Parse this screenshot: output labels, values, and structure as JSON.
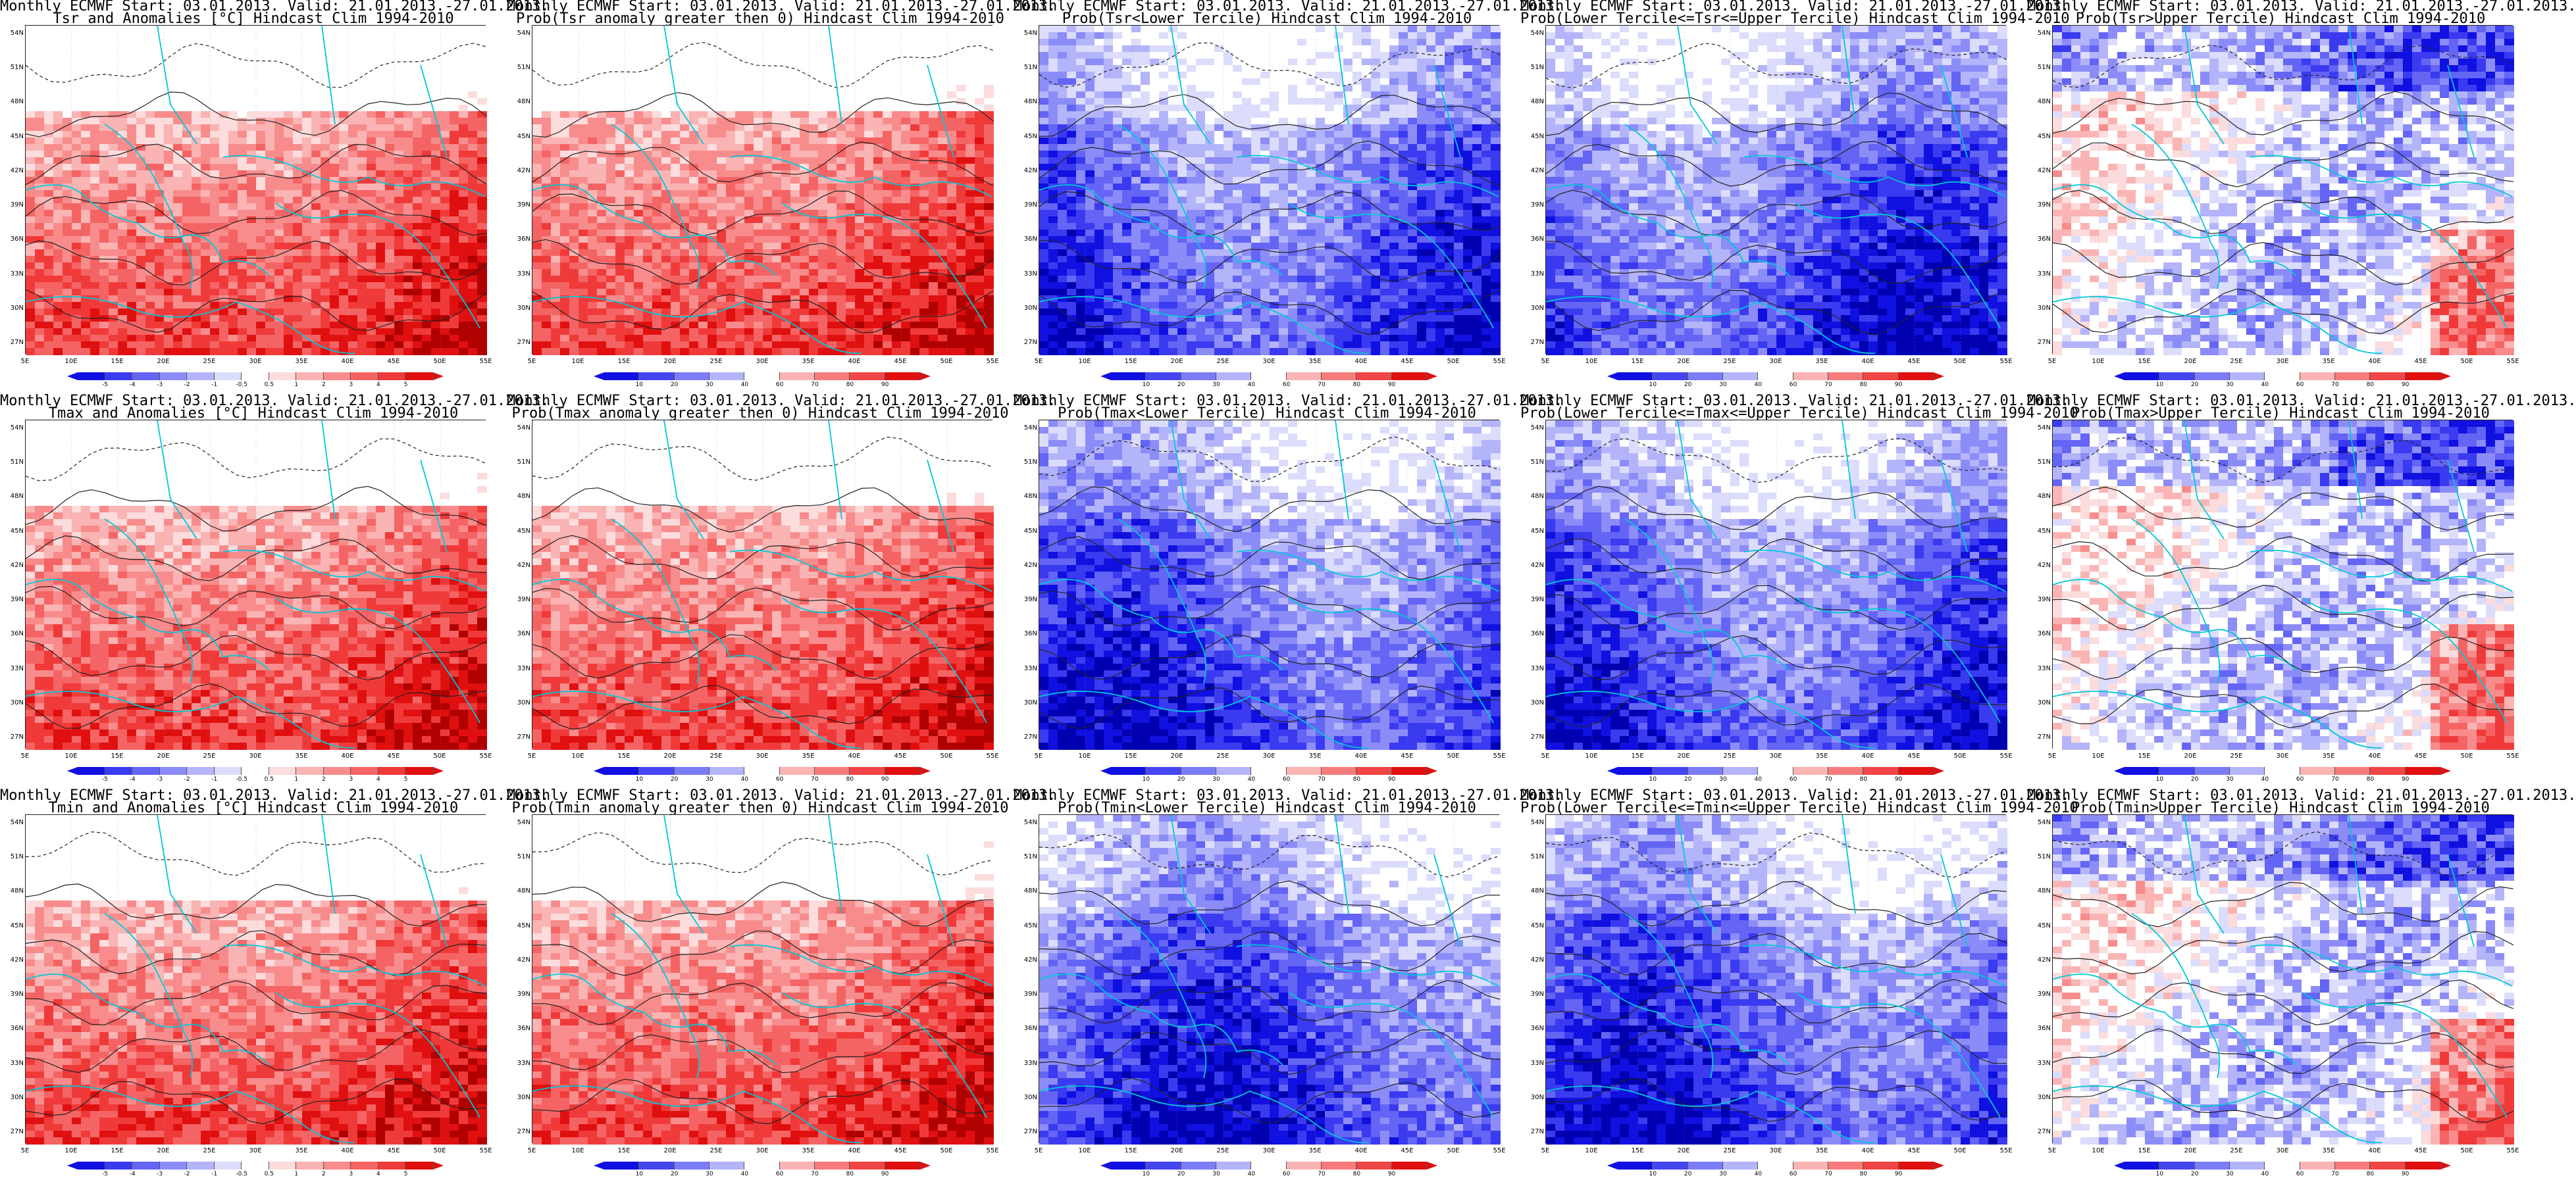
{
  "panels": [
    {
      "title1": "Monthly ECMWF Start: 03.01.2013. Valid: 21.01.2013.-27.01.2013.",
      "title2": "Tsr and Anomalies [°C] Hindcast Clim 1994-2010",
      "scale": "anom",
      "scheme": "red"
    },
    {
      "title1": "Monthly ECMWF Start: 03.01.2013. Valid: 21.01.2013.-27.01.2013.",
      "title2": "Prob(Tsr anomaly greater then 0) Hindcast Clim 1994-2010",
      "scale": "prob",
      "scheme": "red"
    },
    {
      "title1": "Monthly ECMWF Start: 03.01.2013. Valid: 21.01.2013.-27.01.2013.",
      "title2": "Prob(Tsr<Lower Tercile) Hindcast Clim 1994-2010",
      "scale": "prob",
      "scheme": "blue"
    },
    {
      "title1": "Monthly ECMWF Start: 03.01.2013. Valid: 21.01.2013.-27.01.2013.",
      "title2": "Prob(Lower Tercile<=Tsr<=Upper Tercile) Hindcast Clim 1994-2010",
      "scale": "prob",
      "scheme": "blue"
    },
    {
      "title1": "Monthly ECMWF Start: 03.01.2013. Valid: 21.01.2013.-27.01.2013.",
      "title2": "Prob(Tsr>Upper Tercile) Hindcast Clim 1994-2010",
      "scale": "prob",
      "scheme": "mixed"
    },
    {
      "title1": "Monthly ECMWF Start: 03.01.2013. Valid: 21.01.2013.-27.01.2013.",
      "title2": "Tmax and Anomalies [°C] Hindcast Clim 1994-2010",
      "scale": "anom",
      "scheme": "red"
    },
    {
      "title1": "Monthly ECMWF Start: 03.01.2013. Valid: 21.01.2013.-27.01.2013.",
      "title2": "Prob(Tmax anomaly greater then 0) Hindcast Clim 1994-2010",
      "scale": "prob",
      "scheme": "red"
    },
    {
      "title1": "Monthly ECMWF Start: 03.01.2013. Valid: 21.01.2013.-27.01.2013.",
      "title2": "Prob(Tmax<Lower Tercile) Hindcast Clim 1994-2010",
      "scale": "prob",
      "scheme": "blue"
    },
    {
      "title1": "Monthly ECMWF Start: 03.01.2013. Valid: 21.01.2013.-27.01.2013.",
      "title2": "Prob(Lower Tercile<=Tmax<=Upper Tercile) Hindcast Clim 1994-2010",
      "scale": "prob",
      "scheme": "blue"
    },
    {
      "title1": "Monthly ECMWF Start: 03.01.2013. Valid: 21.01.2013.-27.01.2013.",
      "title2": "Prob(Tmax>Upper Tercile) Hindcast Clim 1994-2010",
      "scale": "prob",
      "scheme": "mixed"
    },
    {
      "title1": "Monthly ECMWF Start: 03.01.2013. Valid: 21.01.2013.-27.01.2013.",
      "title2": "Tmin and Anomalies [°C] Hindcast Clim 1994-2010",
      "scale": "anom",
      "scheme": "red"
    },
    {
      "title1": "Monthly ECMWF Start: 03.01.2013. Valid: 21.01.2013.-27.01.2013.",
      "title2": "Prob(Tmin anomaly greater then 0) Hindcast Clim 1994-2010",
      "scale": "prob",
      "scheme": "red"
    },
    {
      "title1": "Monthly ECMWF Start: 03.01.2013. Valid: 21.01.2013.-27.01.2013.",
      "title2": "Prob(Tmin<Lower Tercile) Hindcast Clim 1994-2010",
      "scale": "prob",
      "scheme": "blue"
    },
    {
      "title1": "Monthly ECMWF Start: 03.01.2013. Valid: 21.01.2013.-27.01.2013.",
      "title2": "Prob(Lower Tercile<=Tmin<=Upper Tercile) Hindcast Clim 1994-2010",
      "scale": "prob",
      "scheme": "blue"
    },
    {
      "title1": "Monthly ECMWF Start: 03.01.2013. Valid: 21.01.2013.-27.01.2013.",
      "title2": "Prob(Tmin>Upper Tercile) Hindcast Clim 1994-2010",
      "scale": "prob",
      "scheme": "mixed"
    }
  ],
  "lat_labels": [
    "54N",
    "51N",
    "48N",
    "45N",
    "42N",
    "39N",
    "36N",
    "33N",
    "30N",
    "27N"
  ],
  "lon_labels": [
    "5E",
    "10E",
    "15E",
    "20E",
    "25E",
    "30E",
    "35E",
    "40E",
    "45E",
    "50E",
    "55E"
  ],
  "scales": {
    "anom": {
      "ticks": [
        "-5",
        "-4",
        "-3",
        "-2",
        "-1",
        "-0.5",
        "0.5",
        "1",
        "2",
        "3",
        "4",
        "5"
      ],
      "colors": [
        "#1010e0",
        "#3a3af0",
        "#6464f5",
        "#8c8cf8",
        "#b4b4fa",
        "#dcdcfc",
        "#ffffff",
        "#fcdcdc",
        "#fab4b4",
        "#f88c8c",
        "#f56464",
        "#f03a3a",
        "#e01010"
      ]
    },
    "prob": {
      "ticks": [
        "10",
        "20",
        "30",
        "40",
        "60",
        "70",
        "80",
        "90"
      ],
      "colors": [
        "#1010e0",
        "#4646f0",
        "#7c7cf6",
        "#b4b4fa",
        "#ffffff",
        "#fab4b4",
        "#f67c7c",
        "#f04646",
        "#e01010"
      ]
    }
  },
  "colors": {
    "coast": "#00c8d8",
    "contour": "#222222",
    "deep_red": "#d00000",
    "deep_blue": "#0000d8"
  }
}
